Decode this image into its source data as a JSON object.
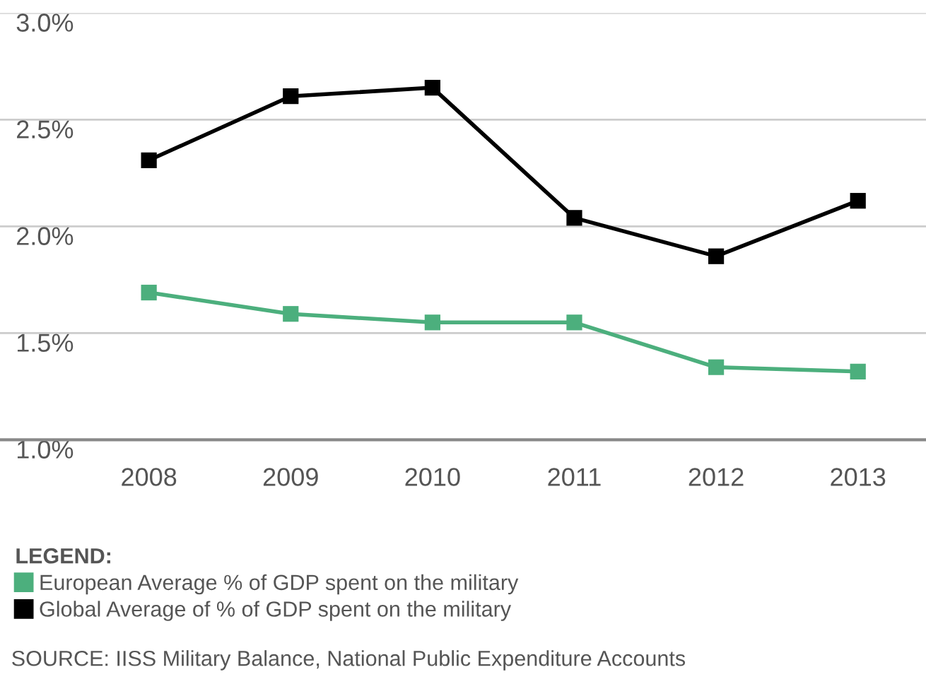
{
  "chart_data": {
    "type": "line",
    "categories": [
      "2008",
      "2009",
      "2010",
      "2011",
      "2012",
      "2013"
    ],
    "series": [
      {
        "name": "European Average % of GDP spent on the military",
        "color": "#4caf7d",
        "values": [
          1.69,
          1.59,
          1.55,
          1.55,
          1.34,
          1.32
        ]
      },
      {
        "name": "Global Average of % of GDP spent on the military",
        "color": "#000000",
        "values": [
          2.31,
          2.61,
          2.65,
          2.04,
          1.86,
          2.12
        ]
      }
    ],
    "ylim": [
      1.0,
      3.0
    ],
    "yticks": [
      {
        "value": 1.0,
        "label": "1.0%"
      },
      {
        "value": 1.5,
        "label": "1.5%"
      },
      {
        "value": 2.0,
        "label": "2.0%"
      },
      {
        "value": 2.5,
        "label": "2.5%"
      },
      {
        "value": 3.0,
        "label": "3.0%"
      }
    ],
    "grid": "y",
    "legend": "bottom",
    "legend_title": "LEGEND:",
    "marker": "square",
    "line_style": "solid",
    "annotations": [
      "SOURCE: IISS Military Balance, National Public Expenditure Accounts"
    ]
  }
}
